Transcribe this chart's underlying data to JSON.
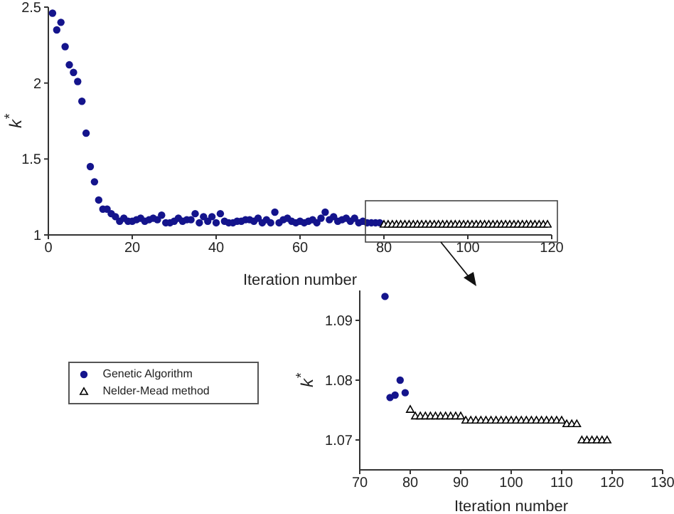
{
  "chart_data": [
    {
      "type": "scatter",
      "xlabel": "Iteration number",
      "ylabel": "k$^{*}$",
      "xlim": [
        0,
        120
      ],
      "ylim": [
        1,
        2.5
      ],
      "xticks": [
        0,
        20,
        40,
        60,
        80,
        100,
        120
      ],
      "yticks": [
        1,
        1.5,
        2,
        2.5
      ],
      "legend": "bottom left",
      "series": [
        {
          "name": "Genetic Algorithm",
          "color": "#14148c",
          "marker": "circle",
          "x": [
            1,
            2,
            3,
            4,
            5,
            6,
            7,
            8,
            9,
            10,
            11,
            12,
            13,
            14,
            15,
            16,
            17,
            18,
            19,
            20,
            21,
            22,
            23,
            24,
            25,
            26,
            27,
            28,
            29,
            30,
            31,
            32,
            33,
            34,
            35,
            36,
            37,
            38,
            39,
            40,
            41,
            42,
            43,
            44,
            45,
            46,
            47,
            48,
            49,
            50,
            51,
            52,
            53,
            54,
            55,
            56,
            57,
            58,
            59,
            60,
            61,
            62,
            63,
            64,
            65,
            66,
            67,
            68,
            69,
            70,
            71,
            72,
            73,
            74,
            75,
            76,
            77,
            78,
            79
          ],
          "values": [
            2.46,
            2.35,
            2.4,
            2.24,
            2.12,
            2.07,
            2.01,
            1.88,
            1.67,
            1.45,
            1.35,
            1.23,
            1.17,
            1.17,
            1.14,
            1.12,
            1.09,
            1.11,
            1.09,
            1.09,
            1.1,
            1.11,
            1.09,
            1.1,
            1.11,
            1.1,
            1.13,
            1.08,
            1.08,
            1.09,
            1.11,
            1.09,
            1.1,
            1.1,
            1.14,
            1.08,
            1.12,
            1.09,
            1.12,
            1.08,
            1.14,
            1.09,
            1.08,
            1.08,
            1.09,
            1.09,
            1.1,
            1.1,
            1.09,
            1.11,
            1.08,
            1.1,
            1.08,
            1.15,
            1.08,
            1.1,
            1.11,
            1.09,
            1.08,
            1.09,
            1.08,
            1.09,
            1.1,
            1.08,
            1.11,
            1.15,
            1.1,
            1.12,
            1.09,
            1.1,
            1.11,
            1.09,
            1.11,
            1.08,
            1.09,
            1.08,
            1.08,
            1.08,
            1.08
          ]
        },
        {
          "name": "Nelder-Mead method",
          "color": "#000000",
          "marker": "triangle",
          "x": [
            80,
            81,
            82,
            83,
            84,
            85,
            86,
            87,
            88,
            89,
            90,
            91,
            92,
            93,
            94,
            95,
            96,
            97,
            98,
            99,
            100,
            101,
            102,
            103,
            104,
            105,
            106,
            107,
            108,
            109,
            110,
            111,
            112,
            113,
            114,
            115,
            116,
            117,
            118,
            119
          ],
          "values": [
            1.07,
            1.07,
            1.07,
            1.07,
            1.07,
            1.07,
            1.07,
            1.07,
            1.07,
            1.07,
            1.07,
            1.07,
            1.07,
            1.07,
            1.07,
            1.07,
            1.07,
            1.07,
            1.07,
            1.07,
            1.07,
            1.07,
            1.07,
            1.07,
            1.07,
            1.07,
            1.07,
            1.07,
            1.07,
            1.07,
            1.07,
            1.07,
            1.07,
            1.07,
            1.07,
            1.07,
            1.07,
            1.07,
            1.07,
            1.07
          ]
        }
      ]
    },
    {
      "type": "scatter",
      "xlabel": "Iteration number",
      "ylabel": "k$^{*}$",
      "xlim": [
        70,
        130
      ],
      "ylim": [
        1.065,
        1.095
      ],
      "xticks": [
        70,
        80,
        90,
        100,
        110,
        120,
        130
      ],
      "yticks": [
        1.07,
        1.08,
        1.09
      ],
      "series": [
        {
          "color": "#14148c",
          "marker": "circle",
          "x": [
            75,
            76,
            77,
            78,
            79
          ],
          "values": [
            1.094,
            1.0771,
            1.0775,
            1.08,
            1.0779
          ]
        },
        {
          "color": "#000000",
          "marker": "triangle",
          "x": [
            80,
            81,
            82,
            83,
            84,
            85,
            86,
            87,
            88,
            89,
            90,
            91,
            92,
            93,
            94,
            95,
            96,
            97,
            98,
            99,
            100,
            101,
            102,
            103,
            104,
            105,
            106,
            107,
            108,
            109,
            110,
            111,
            112,
            113,
            114,
            115,
            116,
            117,
            118,
            119
          ],
          "values": [
            1.0751,
            1.074,
            1.074,
            1.074,
            1.074,
            1.074,
            1.074,
            1.074,
            1.074,
            1.074,
            1.074,
            1.0733,
            1.0733,
            1.0733,
            1.0733,
            1.0733,
            1.0733,
            1.0733,
            1.0733,
            1.0733,
            1.0733,
            1.0733,
            1.0733,
            1.0733,
            1.0733,
            1.0733,
            1.0733,
            1.0733,
            1.0733,
            1.0733,
            1.0733,
            1.0727,
            1.0727,
            1.0727,
            1.07,
            1.07,
            1.07,
            1.07,
            1.07,
            1.07
          ]
        }
      ]
    }
  ]
}
